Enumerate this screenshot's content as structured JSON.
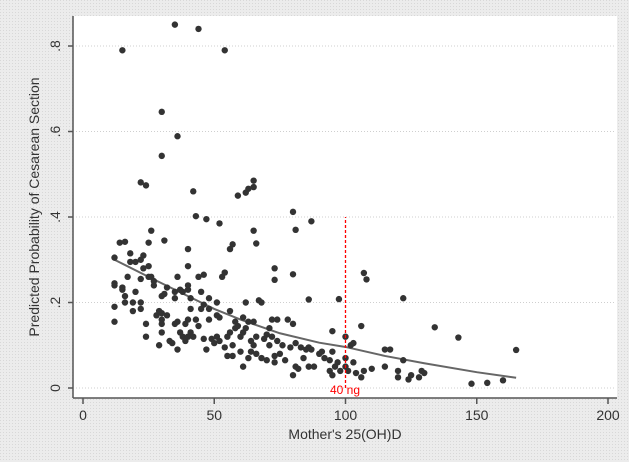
{
  "chart_data": {
    "type": "scatter",
    "title": "",
    "xlabel": "Mother's 25(OH)D",
    "ylabel": "Predicted Probability of Cesarean Section",
    "xlim": [
      0,
      200
    ],
    "ylim": [
      0,
      0.85
    ],
    "xticks": [
      0,
      50,
      100,
      150,
      200
    ],
    "xtick_labels": [
      "0",
      "50",
      "100",
      "150",
      "200"
    ],
    "yticks": [
      0,
      0.2,
      0.4,
      0.6,
      0.8
    ],
    "ytick_labels": [
      "0",
      ".2",
      ".4",
      ".6",
      ".8"
    ],
    "grid": true,
    "colors": {
      "points": "#333333",
      "fit": "#666666",
      "reference": "#ff0000"
    },
    "annotation": {
      "text": "40 ng",
      "x": 100,
      "y_from": 0,
      "y_to": 0.4
    },
    "fit_line": {
      "name": "fitted",
      "x": [
        12,
        25,
        40,
        50,
        60,
        75,
        90,
        100,
        115,
        130,
        150,
        165
      ],
      "y": [
        0.3,
        0.26,
        0.215,
        0.185,
        0.16,
        0.128,
        0.106,
        0.096,
        0.075,
        0.058,
        0.037,
        0.024
      ]
    },
    "points": [
      [
        15,
        0.79
      ],
      [
        35,
        0.85
      ],
      [
        44,
        0.84
      ],
      [
        54,
        0.79
      ],
      [
        30,
        0.646
      ],
      [
        36,
        0.589
      ],
      [
        30,
        0.543
      ],
      [
        22,
        0.481
      ],
      [
        24,
        0.474
      ],
      [
        42,
        0.46
      ],
      [
        59,
        0.45
      ],
      [
        62,
        0.457
      ],
      [
        63,
        0.466
      ],
      [
        65,
        0.47
      ],
      [
        65,
        0.485
      ],
      [
        43,
        0.402
      ],
      [
        47,
        0.395
      ],
      [
        52,
        0.385
      ],
      [
        80,
        0.412
      ],
      [
        81,
        0.37
      ],
      [
        87,
        0.39
      ],
      [
        65,
        0.368
      ],
      [
        66,
        0.338
      ],
      [
        56,
        0.325
      ],
      [
        57,
        0.336
      ],
      [
        26,
        0.368
      ],
      [
        25,
        0.34
      ],
      [
        14,
        0.34
      ],
      [
        16,
        0.342
      ],
      [
        31,
        0.345
      ],
      [
        40,
        0.325
      ],
      [
        40,
        0.285
      ],
      [
        73,
        0.28
      ],
      [
        73,
        0.253
      ],
      [
        80,
        0.266
      ],
      [
        107,
        0.269
      ],
      [
        108,
        0.254
      ],
      [
        86,
        0.207
      ],
      [
        97.5,
        0.208
      ],
      [
        122,
        0.21
      ],
      [
        134,
        0.142
      ],
      [
        143,
        0.118
      ],
      [
        165,
        0.089
      ],
      [
        148,
        0.01
      ],
      [
        154,
        0.012
      ],
      [
        160,
        0.018
      ],
      [
        106,
        0.145
      ],
      [
        95,
        0.133
      ],
      [
        12,
        0.305
      ],
      [
        12,
        0.245
      ],
      [
        12,
        0.24
      ],
      [
        12,
        0.19
      ],
      [
        12,
        0.155
      ],
      [
        15,
        0.235
      ],
      [
        15,
        0.23
      ],
      [
        16,
        0.2
      ],
      [
        16,
        0.215
      ],
      [
        17,
        0.26
      ],
      [
        18,
        0.295
      ],
      [
        18,
        0.315
      ],
      [
        19,
        0.18
      ],
      [
        19,
        0.2
      ],
      [
        20,
        0.225
      ],
      [
        20,
        0.295
      ],
      [
        22,
        0.185
      ],
      [
        22,
        0.2
      ],
      [
        22,
        0.255
      ],
      [
        22,
        0.3
      ],
      [
        23,
        0.28
      ],
      [
        23,
        0.31
      ],
      [
        24,
        0.15
      ],
      [
        24,
        0.12
      ],
      [
        25,
        0.285
      ],
      [
        25,
        0.26
      ],
      [
        26,
        0.26
      ],
      [
        27,
        0.24
      ],
      [
        27,
        0.25
      ],
      [
        28,
        0.17
      ],
      [
        29,
        0.1
      ],
      [
        29,
        0.18
      ],
      [
        30,
        0.215
      ],
      [
        30,
        0.16
      ],
      [
        30,
        0.15
      ],
      [
        30,
        0.13
      ],
      [
        30,
        0.175
      ],
      [
        31,
        0.22
      ],
      [
        32,
        0.17
      ],
      [
        32,
        0.235
      ],
      [
        33,
        0.11
      ],
      [
        34,
        0.105
      ],
      [
        35,
        0.15
      ],
      [
        35,
        0.21
      ],
      [
        35,
        0.225
      ],
      [
        36,
        0.09
      ],
      [
        36,
        0.26
      ],
      [
        36,
        0.155
      ],
      [
        37,
        0.13
      ],
      [
        37,
        0.23
      ],
      [
        38,
        0.12
      ],
      [
        38,
        0.225
      ],
      [
        39,
        0.11
      ],
      [
        39,
        0.15
      ],
      [
        40,
        0.12
      ],
      [
        40,
        0.16
      ],
      [
        40,
        0.23
      ],
      [
        40,
        0.24
      ],
      [
        41,
        0.13
      ],
      [
        41,
        0.21
      ],
      [
        41,
        0.185
      ],
      [
        42,
        0.12
      ],
      [
        43,
        0.16
      ],
      [
        44,
        0.145
      ],
      [
        44,
        0.26
      ],
      [
        45,
        0.225
      ],
      [
        45,
        0.185
      ],
      [
        46,
        0.265
      ],
      [
        46,
        0.195
      ],
      [
        46,
        0.115
      ],
      [
        47,
        0.09
      ],
      [
        48,
        0.16
      ],
      [
        48,
        0.185
      ],
      [
        48,
        0.21
      ],
      [
        49,
        0.115
      ],
      [
        50,
        0.105
      ],
      [
        51,
        0.2
      ],
      [
        51,
        0.17
      ],
      [
        51,
        0.12
      ],
      [
        52,
        0.11
      ],
      [
        52,
        0.165
      ],
      [
        53,
        0.26
      ],
      [
        54,
        0.27
      ],
      [
        54,
        0.095
      ],
      [
        55,
        0.12
      ],
      [
        55,
        0.075
      ],
      [
        56,
        0.18
      ],
      [
        56,
        0.13
      ],
      [
        57,
        0.1
      ],
      [
        57,
        0.075
      ],
      [
        58,
        0.14
      ],
      [
        58,
        0.155
      ],
      [
        59,
        0.145
      ],
      [
        60,
        0.12
      ],
      [
        60,
        0.085
      ],
      [
        61,
        0.165
      ],
      [
        61,
        0.13
      ],
      [
        61,
        0.05
      ],
      [
        62,
        0.2
      ],
      [
        62,
        0.14
      ],
      [
        63,
        0.07
      ],
      [
        63,
        0.155
      ],
      [
        64,
        0.11
      ],
      [
        64,
        0.085
      ],
      [
        65,
        0.155
      ],
      [
        65,
        0.1
      ],
      [
        66,
        0.12
      ],
      [
        66,
        0.08
      ],
      [
        67,
        0.205
      ],
      [
        68,
        0.2
      ],
      [
        68,
        0.07
      ],
      [
        69,
        0.115
      ],
      [
        70,
        0.125
      ],
      [
        70,
        0.065
      ],
      [
        71,
        0.1
      ],
      [
        71,
        0.14
      ],
      [
        72,
        0.16
      ],
      [
        72,
        0.12
      ],
      [
        73,
        0.06
      ],
      [
        73,
        0.075
      ],
      [
        74,
        0.16
      ],
      [
        74,
        0.11
      ],
      [
        75,
        0.08
      ],
      [
        76,
        0.1
      ],
      [
        77,
        0.065
      ],
      [
        78,
        0.16
      ],
      [
        79,
        0.095
      ],
      [
        80,
        0.03
      ],
      [
        80,
        0.15
      ],
      [
        81,
        0.105
      ],
      [
        81,
        0.05
      ],
      [
        82,
        0.045
      ],
      [
        83,
        0.095
      ],
      [
        84,
        0.07
      ],
      [
        85,
        0.09
      ],
      [
        86,
        0.095
      ],
      [
        86,
        0.05
      ],
      [
        87,
        0.09
      ],
      [
        88,
        0.05
      ],
      [
        90,
        0.08
      ],
      [
        91,
        0.085
      ],
      [
        92,
        0.07
      ],
      [
        94,
        0.04
      ],
      [
        94,
        0.065
      ],
      [
        95,
        0.085
      ],
      [
        95,
        0.03
      ],
      [
        96,
        0.05
      ],
      [
        97,
        0.06
      ],
      [
        98,
        0.04
      ],
      [
        100,
        0.12
      ],
      [
        100,
        0.07
      ],
      [
        100,
        0.05
      ],
      [
        101,
        0.04
      ],
      [
        102,
        0.1
      ],
      [
        103,
        0.105
      ],
      [
        103,
        0.06
      ],
      [
        104,
        0.035
      ],
      [
        106,
        0.025
      ],
      [
        107,
        0.04
      ],
      [
        110,
        0.045
      ],
      [
        115,
        0.09
      ],
      [
        115,
        0.05
      ],
      [
        117,
        0.09
      ],
      [
        120,
        0.04
      ],
      [
        120,
        0.025
      ],
      [
        122,
        0.065
      ],
      [
        124,
        0.02
      ],
      [
        125,
        0.03
      ],
      [
        128,
        0.025
      ],
      [
        129,
        0.04
      ],
      [
        130,
        0.035
      ]
    ]
  }
}
